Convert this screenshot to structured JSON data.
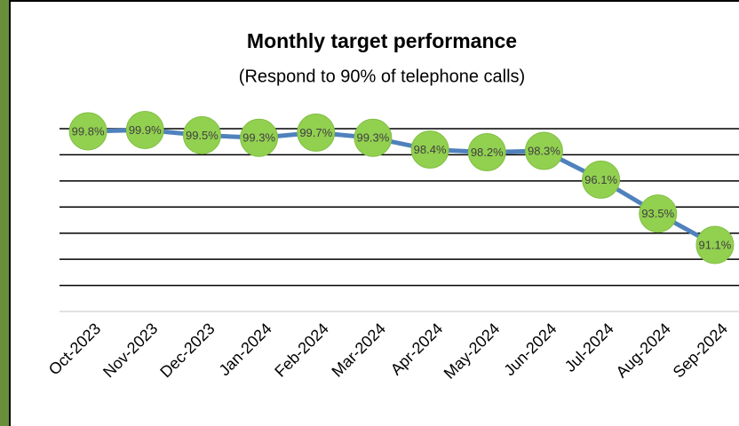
{
  "chart_data": {
    "type": "line",
    "title": "Monthly target performance",
    "subtitle": "(Respond to 90% of telephone calls)",
    "categories": [
      "Oct-2023",
      "Nov-2023",
      "Dec-2023",
      "Jan-2024",
      "Feb-2024",
      "Mar-2024",
      "Apr-2024",
      "May-2024",
      "Jun-2024",
      "Jul-2024",
      "Aug-2024",
      "Sep-2024"
    ],
    "values": [
      99.8,
      99.9,
      99.5,
      99.3,
      99.7,
      99.3,
      98.4,
      98.2,
      98.3,
      96.1,
      93.5,
      91.1
    ],
    "value_labels": [
      "99.8%",
      "99.9%",
      "99.5%",
      "99.3%",
      "99.7%",
      "99.3%",
      "98.4%",
      "98.2%",
      "98.3%",
      "96.1%",
      "93.5%",
      "91.1%"
    ],
    "color": "#4f81bd",
    "marker_color": "#92d050",
    "ylim": [
      86,
      100
    ],
    "yticks": [
      88,
      90,
      92,
      94,
      96,
      98,
      100
    ],
    "grid": true
  }
}
